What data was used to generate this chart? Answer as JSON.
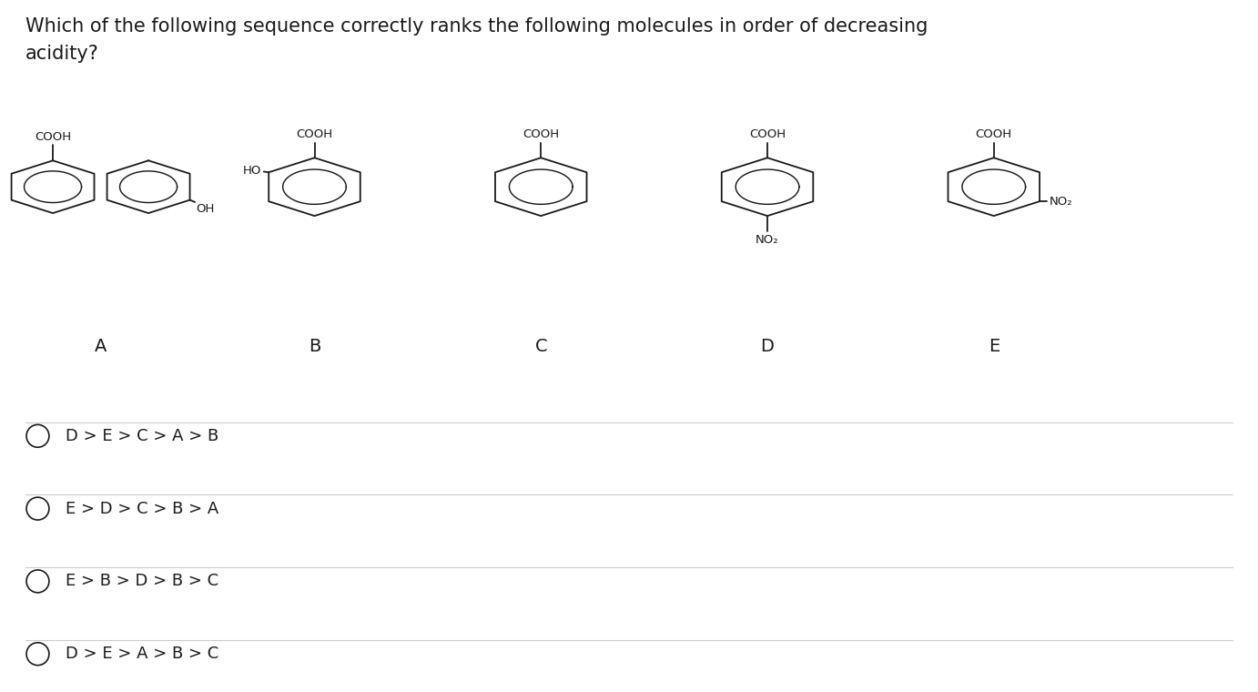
{
  "background_color": "#ffffff",
  "title_line1": "Which of the following sequence correctly ranks the following molecules in order of decreasing",
  "title_line2": "acidity?",
  "title_fontsize": 15,
  "molecule_labels": [
    "A",
    "B",
    "C",
    "D",
    "E"
  ],
  "molecule_label_fontsize": 14,
  "options": [
    "D > E > C > A > B",
    "E > D > C > B > A",
    "E > B > D > B > C",
    "D > E > A > B > C"
  ],
  "options_fontsize": 13,
  "text_color": "#1a1a1a"
}
